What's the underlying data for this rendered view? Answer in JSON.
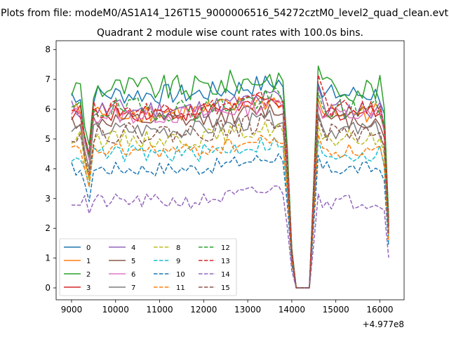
{
  "figure": {
    "suptitle": "Plots from file: modeM0/AS1A14_126T15_9000006516_54272cztM0_level2_quad_clean.evt"
  },
  "chart_data": {
    "type": "line",
    "title": "Quadrant 2 module wise count rates with 100.0s bins.",
    "xlabel": "",
    "ylabel": "",
    "x_offset_label": "+4.977e8",
    "xlim": [
      8650,
      16550
    ],
    "ylim": [
      -0.4,
      8.3
    ],
    "x_ticks": [
      9000,
      10000,
      11000,
      12000,
      13000,
      14000,
      15000,
      16000
    ],
    "x_tick_labels": [
      "9000",
      "10000",
      "11000",
      "12000",
      "13000",
      "14000",
      "15000",
      "16000"
    ],
    "y_ticks": [
      0,
      1,
      2,
      3,
      4,
      5,
      6,
      7,
      8
    ],
    "y_tick_labels": [
      "0",
      "1",
      "2",
      "3",
      "4",
      "5",
      "6",
      "7",
      "8"
    ],
    "grid": false,
    "legend_position": "lower-left",
    "legend_columns": 4,
    "x_start": 9000,
    "x_step": 100,
    "series": [
      {
        "name": "0",
        "color": "#1f77b4",
        "style": "solid",
        "base": 6.5,
        "amp": 0.35,
        "dip": 4.4,
        "high": 6.7
      },
      {
        "name": "1",
        "color": "#ff7f0e",
        "style": "solid",
        "base": 5.9,
        "amp": 0.35,
        "dip": 3.7,
        "high": 6.2
      },
      {
        "name": "2",
        "color": "#2ca02c",
        "style": "solid",
        "base": 6.7,
        "amp": 0.45,
        "dip": 4.8,
        "high": 7.3
      },
      {
        "name": "3",
        "color": "#d62728",
        "style": "solid",
        "base": 5.9,
        "amp": 0.3,
        "dip": 4.3,
        "high": 6.0
      },
      {
        "name": "4",
        "color": "#9467bd",
        "style": "solid",
        "base": 6.0,
        "amp": 0.35,
        "dip": 4.5,
        "high": 6.6
      },
      {
        "name": "5",
        "color": "#8c564b",
        "style": "solid",
        "base": 5.6,
        "amp": 0.3,
        "dip": 4.0,
        "high": 6.0
      },
      {
        "name": "6",
        "color": "#e377c2",
        "style": "solid",
        "base": 5.8,
        "amp": 0.3,
        "dip": 4.3,
        "high": 6.0
      },
      {
        "name": "7",
        "color": "#7f7f7f",
        "style": "solid",
        "base": 5.3,
        "amp": 0.3,
        "dip": 4.0,
        "high": 5.7
      },
      {
        "name": "8",
        "color": "#bcbd22",
        "style": "dashed",
        "base": 5.0,
        "amp": 0.3,
        "dip": 3.6,
        "high": 5.3
      },
      {
        "name": "9",
        "color": "#17becf",
        "style": "dashed",
        "base": 4.5,
        "amp": 0.3,
        "dip": 3.4,
        "high": 4.8
      },
      {
        "name": "10",
        "color": "#1f77b4",
        "style": "dashed",
        "base": 4.0,
        "amp": 0.25,
        "dip": 2.9,
        "high": 4.3
      },
      {
        "name": "11",
        "color": "#ff7f0e",
        "style": "dashed",
        "base": 4.6,
        "amp": 0.25,
        "dip": 3.4,
        "high": 5.0
      },
      {
        "name": "12",
        "color": "#2ca02c",
        "style": "dashed",
        "base": 6.0,
        "amp": 0.4,
        "dip": 4.4,
        "high": 6.4
      },
      {
        "name": "13",
        "color": "#d62728",
        "style": "dashed",
        "base": 6.0,
        "amp": 0.3,
        "dip": 4.5,
        "high": 7.0
      },
      {
        "name": "14",
        "color": "#9467bd",
        "style": "dashed",
        "base": 2.9,
        "amp": 0.25,
        "dip": 2.5,
        "high": 3.0
      },
      {
        "name": "15",
        "color": "#8c564b",
        "style": "dashed",
        "base": 5.2,
        "amp": 0.35,
        "dip": 3.8,
        "high": 5.6
      }
    ]
  }
}
